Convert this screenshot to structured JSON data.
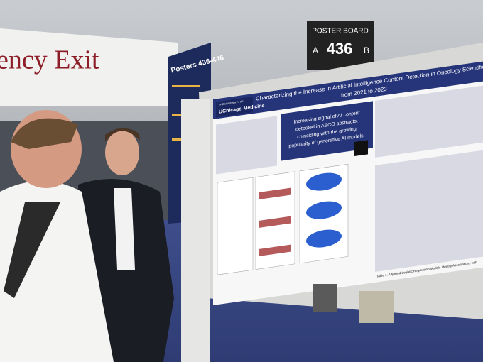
{
  "signage": {
    "exit_sign": "ency Exit",
    "posters_banner": "Posters 436-446",
    "board_label": "POSTER BOARD",
    "board_left": "A",
    "board_number": "436",
    "board_right": "B"
  },
  "poster": {
    "title": "Characterizing the Increase in Artificial Intelligence Content Detection in Oncology Scientific Ab",
    "title_line2": "from 2021 to 2023",
    "logo_small": "THE UNIVERSITY OF",
    "logo": "UChicago Medicine",
    "key_finding_lines": [
      "Increasing signal of AI content",
      "detected in ASCO abstracts,",
      "coinciding with the growing",
      "popularity of generative AI models."
    ],
    "table_caption": "Table 1. Adjusted Logistic Regression Models Identify Associations with"
  }
}
